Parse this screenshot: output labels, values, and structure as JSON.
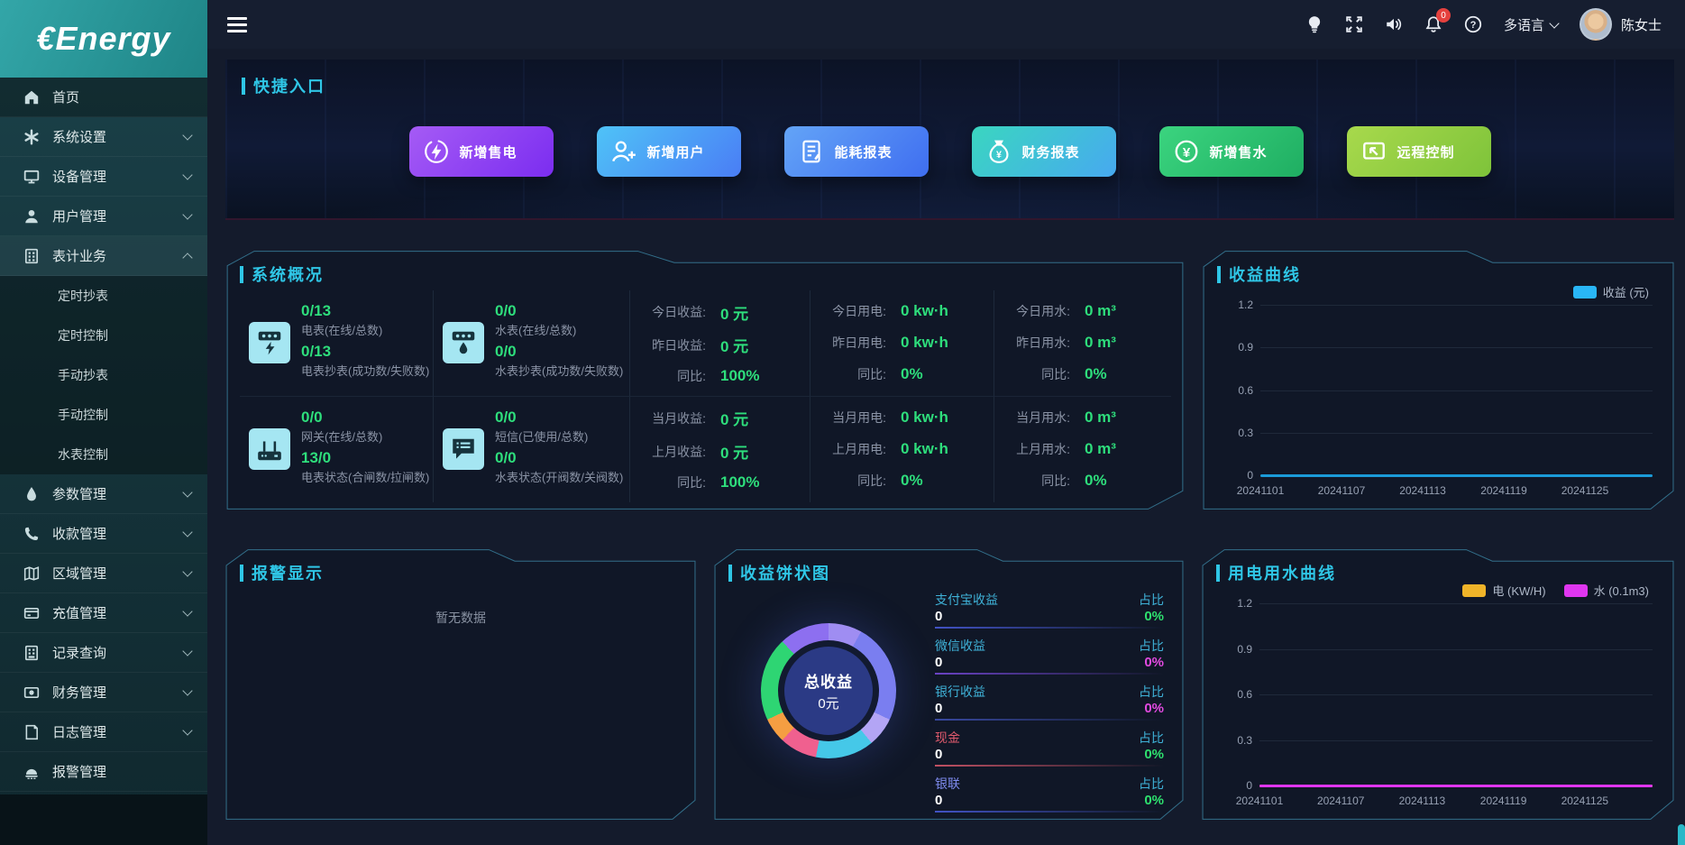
{
  "brand": {
    "logo_text": "€Energy"
  },
  "topbar": {
    "badge_count": "0",
    "language_label": "多语言",
    "username": "陈女士"
  },
  "sidebar": {
    "items": [
      {
        "key": "home",
        "label": "首页",
        "icon": "home-icon",
        "active": true,
        "expandable": false
      },
      {
        "key": "system-settings",
        "label": "系统设置",
        "icon": "gear-icon",
        "expandable": true
      },
      {
        "key": "device-management",
        "label": "设备管理",
        "icon": "monitor-icon",
        "expandable": true
      },
      {
        "key": "user-management",
        "label": "用户管理",
        "icon": "user-icon",
        "expandable": true
      },
      {
        "key": "meter-business",
        "label": "表计业务",
        "icon": "meter-icon",
        "expandable": true,
        "expanded": true,
        "children": [
          {
            "key": "scheduled-reading",
            "label": "定时抄表"
          },
          {
            "key": "scheduled-control",
            "label": "定时控制"
          },
          {
            "key": "manual-reading",
            "label": "手动抄表"
          },
          {
            "key": "manual-control",
            "label": "手动控制"
          },
          {
            "key": "water-meter-control",
            "label": "水表控制"
          }
        ]
      },
      {
        "key": "parameter-management",
        "label": "参数管理",
        "icon": "droplet-icon",
        "expandable": true
      },
      {
        "key": "collection-management",
        "label": "收款管理",
        "icon": "phone-icon",
        "expandable": true
      },
      {
        "key": "region-management",
        "label": "区域管理",
        "icon": "map-icon",
        "expandable": true
      },
      {
        "key": "recharge-management",
        "label": "充值管理",
        "icon": "card-icon",
        "expandable": true
      },
      {
        "key": "record-query",
        "label": "记录查询",
        "icon": "records-icon",
        "expandable": true
      },
      {
        "key": "finance-management",
        "label": "财务管理",
        "icon": "money-icon",
        "expandable": true
      },
      {
        "key": "log-management",
        "label": "日志管理",
        "icon": "log-icon",
        "expandable": true
      },
      {
        "key": "alarm-management",
        "label": "报警管理",
        "icon": "alarm-icon",
        "expandable": false
      }
    ]
  },
  "quick_entry": {
    "title": "快捷入口",
    "buttons": [
      {
        "key": "add-electricity-sale",
        "label": "新增售电",
        "icon": "lightning-icon",
        "gradient": [
          "#a55bf5",
          "#7b2df0"
        ]
      },
      {
        "key": "add-user",
        "label": "新增用户",
        "icon": "user-add-icon",
        "gradient": [
          "#4fc3f7",
          "#4a7df5"
        ]
      },
      {
        "key": "energy-report",
        "label": "能耗报表",
        "icon": "report-icon",
        "gradient": [
          "#63a4f7",
          "#3f6ef0"
        ]
      },
      {
        "key": "finance-report",
        "label": "财务报表",
        "icon": "moneybag-icon",
        "gradient": [
          "#3ad6c0",
          "#47a9f0"
        ]
      },
      {
        "key": "add-water-sale",
        "label": "新增售水",
        "icon": "yen-coin-icon",
        "gradient": [
          "#3bd47f",
          "#1fae62"
        ]
      },
      {
        "key": "remote-control",
        "label": "远程控制",
        "icon": "remote-icon",
        "gradient": [
          "#a8d94c",
          "#7ec33a"
        ]
      }
    ]
  },
  "system_overview": {
    "title": "系统概况",
    "meters": [
      {
        "icon": "electric-meter-icon",
        "rows": [
          {
            "value": "0/13",
            "label": "电表(在线/总数)"
          },
          {
            "value": "0/13",
            "label": "电表抄表(成功数/失败数)"
          }
        ]
      },
      {
        "icon": "water-meter-icon",
        "rows": [
          {
            "value": "0/0",
            "label": "水表(在线/总数)"
          },
          {
            "value": "0/0",
            "label": "水表抄表(成功数/失败数)"
          }
        ]
      },
      {
        "icon": "gateway-icon",
        "rows": [
          {
            "value": "0/0",
            "label": "网关(在线/总数)"
          },
          {
            "value": "13/0",
            "label": "电表状态(合闸数/拉闸数)"
          }
        ]
      },
      {
        "icon": "sms-icon",
        "rows": [
          {
            "value": "0/0",
            "label": "短信(已使用/总数)"
          },
          {
            "value": "0/0",
            "label": "水表状态(开阀数/关阀数)"
          }
        ]
      }
    ],
    "stat_columns": [
      {
        "rows": [
          {
            "label": "今日收益:",
            "value": "0 元"
          },
          {
            "label": "昨日收益:",
            "value": "0 元"
          },
          {
            "label": "同比:",
            "value": "100%"
          },
          {
            "label": "当月收益:",
            "value": "0 元"
          },
          {
            "label": "上月收益:",
            "value": "0 元"
          },
          {
            "label": "同比:",
            "value": "100%"
          }
        ]
      },
      {
        "rows": [
          {
            "label": "今日用电:",
            "value": "0 kw·h"
          },
          {
            "label": "昨日用电:",
            "value": "0 kw·h"
          },
          {
            "label": "同比:",
            "value": "0%"
          },
          {
            "label": "当月用电:",
            "value": "0 kw·h"
          },
          {
            "label": "上月用电:",
            "value": "0 kw·h"
          },
          {
            "label": "同比:",
            "value": "0%"
          }
        ]
      },
      {
        "rows": [
          {
            "label": "今日用水:",
            "value": "0 m³"
          },
          {
            "label": "昨日用水:",
            "value": "0 m³"
          },
          {
            "label": "同比:",
            "value": "0%"
          },
          {
            "label": "当月用水:",
            "value": "0 m³"
          },
          {
            "label": "上月用水:",
            "value": "0 m³"
          },
          {
            "label": "同比:",
            "value": "0%"
          }
        ]
      }
    ]
  },
  "revenue_panel": {
    "title": "收益曲线",
    "legend": [
      {
        "label": "收益 (元)",
        "color": "#29b6f6"
      }
    ],
    "chart_data": {
      "type": "line",
      "y_ticks": [
        0,
        0.3,
        0.6,
        0.9,
        1.2
      ],
      "x_tick_labels": [
        "20241101",
        "20241107",
        "20241113",
        "20241119",
        "20241125"
      ],
      "x_days": 30,
      "series": [
        {
          "name": "收益 (元)",
          "color": "#1b9bd8",
          "values": [
            0,
            0,
            0,
            0,
            0,
            0,
            0,
            0,
            0,
            0,
            0,
            0,
            0,
            0,
            0,
            0,
            0,
            0,
            0,
            0,
            0,
            0,
            0,
            0,
            0,
            0,
            0,
            0,
            0,
            0
          ]
        }
      ]
    }
  },
  "alarm_panel": {
    "title": "报警显示",
    "empty_text": "暂无数据"
  },
  "pie_panel": {
    "title": "收益饼状图",
    "center_label": "总收益",
    "center_value": "0元",
    "ratio_label": "占比",
    "legend": [
      {
        "name": "支付宝收益",
        "value": "0",
        "ratio": "0%",
        "name_color": "#3fb3d9",
        "ratio_color": "#2ee06e",
        "line_color": "#4a5de0"
      },
      {
        "name": "微信收益",
        "value": "0",
        "ratio": "0%",
        "name_color": "#3fb3d9",
        "ratio_color": "#e24ae0",
        "line_color": "#7a4ae0"
      },
      {
        "name": "银行收益",
        "value": "0",
        "ratio": "0%",
        "name_color": "#3fb3d9",
        "ratio_color": "#e24ae0",
        "line_color": "#3f51b5"
      },
      {
        "name": "现金",
        "value": "0",
        "ratio": "0%",
        "name_color": "#e05a6d",
        "ratio_color": "#2ee06e",
        "line_color": "#e05a6d"
      },
      {
        "name": "银联",
        "value": "0",
        "ratio": "0%",
        "name_color": "#7f8cf0",
        "ratio_color": "#2ee06e",
        "line_color": "#4a5de0"
      }
    ],
    "segments": [
      {
        "color": "#9f8df2",
        "pct": 8
      },
      {
        "color": "#7a7ef0",
        "pct": 24
      },
      {
        "color": "#b3a5f5",
        "pct": 7
      },
      {
        "color": "#45c8e8",
        "pct": 14
      },
      {
        "color": "#f0608f",
        "pct": 9
      },
      {
        "color": "#f59e42",
        "pct": 6
      },
      {
        "color": "#2ed573",
        "pct": 20
      },
      {
        "color": "#8d6ff0",
        "pct": 12
      }
    ]
  },
  "usage_panel": {
    "title": "用电用水曲线",
    "legend": [
      {
        "label": "电 (KW/H)",
        "color": "#f0b429"
      },
      {
        "label": "水 (0.1m3)",
        "color": "#e036f0"
      }
    ],
    "chart_data": {
      "type": "line",
      "y_ticks": [
        0,
        0.3,
        0.6,
        0.9,
        1.2
      ],
      "x_tick_labels": [
        "20241101",
        "20241107",
        "20241113",
        "20241119",
        "20241125"
      ],
      "x_days": 30,
      "series": [
        {
          "name": "电 (KW/H)",
          "color": "#f0b429",
          "values": [
            0,
            0,
            0,
            0,
            0,
            0,
            0,
            0,
            0,
            0,
            0,
            0,
            0,
            0,
            0,
            0,
            0,
            0,
            0,
            0,
            0,
            0,
            0,
            0,
            0,
            0,
            0,
            0,
            0,
            0
          ]
        },
        {
          "name": "水 (0.1m3)",
          "color": "#e036f0",
          "values": [
            0,
            0,
            0,
            0,
            0,
            0,
            0,
            0,
            0,
            0,
            0,
            0,
            0,
            0,
            0,
            0,
            0,
            0,
            0,
            0,
            0,
            0,
            0,
            0,
            0,
            0,
            0,
            0,
            0,
            0
          ]
        }
      ]
    }
  }
}
